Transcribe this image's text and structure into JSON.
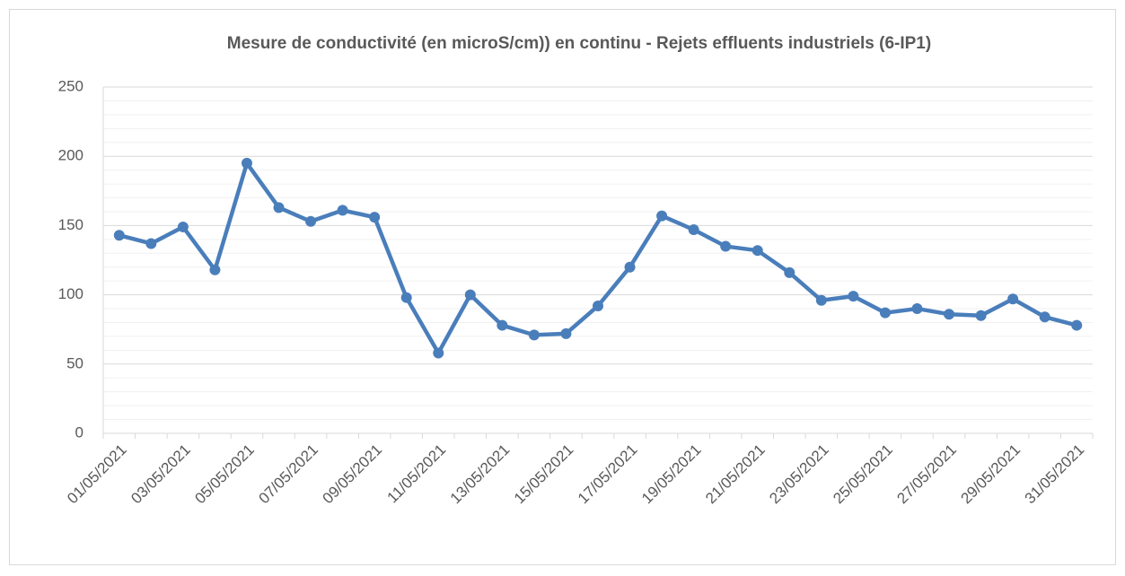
{
  "chart_data": {
    "type": "line",
    "title": "Mesure de conductivité (en microS/cm)) en continu - Rejets effluents industriels (6-IP1)",
    "categories": [
      "01/05/2021",
      null,
      "03/05/2021",
      null,
      "05/05/2021",
      null,
      "07/05/2021",
      null,
      "09/05/2021",
      null,
      "11/05/2021",
      null,
      "13/05/2021",
      null,
      "15/05/2021",
      null,
      "17/05/2021",
      null,
      "19/05/2021",
      null,
      "21/05/2021",
      null,
      "23/05/2021",
      null,
      "25/05/2021",
      null,
      "27/05/2021",
      null,
      "29/05/2021",
      null,
      "31/05/2021"
    ],
    "values": [
      143,
      137,
      149,
      118,
      195,
      163,
      153,
      161,
      156,
      98,
      58,
      100,
      78,
      71,
      72,
      92,
      120,
      157,
      147,
      135,
      132,
      116,
      96,
      99,
      87,
      90,
      86,
      85,
      97,
      84,
      78
    ],
    "color": "#4a7ebb",
    "ylim": [
      0,
      250
    ],
    "yticks": [
      0,
      50,
      100,
      150,
      200,
      250
    ],
    "minor_yticks": [
      10,
      20,
      30,
      40,
      60,
      70,
      80,
      90,
      110,
      120,
      130,
      140,
      160,
      170,
      180,
      190,
      210,
      220,
      230,
      240
    ],
    "grid": true
  }
}
